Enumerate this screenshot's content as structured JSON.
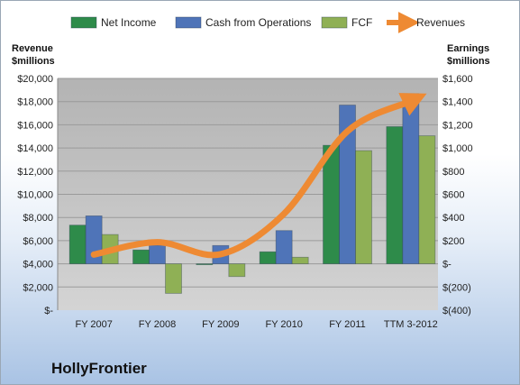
{
  "company": "HollyFrontier",
  "chart_data": {
    "type": "bar",
    "categories": [
      "FY 2007",
      "FY 2008",
      "FY 2009",
      "FY 2010",
      "FY 2011",
      "TTM 3-2012"
    ],
    "series": [
      {
        "name": "Net Income",
        "axis": "right",
        "kind": "bar",
        "color": "#2e8b4a",
        "values": [
          334,
          120,
          0.1,
          104,
          1023,
          1184
        ]
      },
      {
        "name": "Cash from Operations",
        "axis": "right",
        "kind": "bar",
        "color": "#4f74b8",
        "values": [
          414,
          160,
          158,
          287,
          1370,
          1469
        ]
      },
      {
        "name": "FCF",
        "axis": "right",
        "kind": "bar",
        "color": "#8fb055",
        "values": [
          253,
          -255,
          -110,
          57,
          977,
          1105
        ]
      },
      {
        "name": "Revenues",
        "axis": "left",
        "kind": "line",
        "color": "#ee8a33",
        "values": [
          4800,
          5870,
          4830,
          8320,
          15440,
          18040
        ]
      }
    ],
    "left_axis": {
      "label_line1": "Revenue",
      "label_line2": "$millions",
      "min": 0,
      "max": 20000,
      "ticks": [
        "$-",
        "$2,000",
        "$4,000",
        "$6,000",
        "$8,000",
        "$10,000",
        "$12,000",
        "$14,000",
        "$16,000",
        "$18,000",
        "$20,000"
      ]
    },
    "right_axis": {
      "label_line1": "Earnings",
      "label_line2": "$millions",
      "min": -400,
      "max": 1600,
      "ticks": [
        "$(400)",
        "$(200)",
        "$-",
        "$200",
        "$400",
        "$600",
        "$800",
        "$1,000",
        "$1,200",
        "$1,400",
        "$1,600"
      ]
    },
    "legend_position": "top",
    "grid": true
  }
}
